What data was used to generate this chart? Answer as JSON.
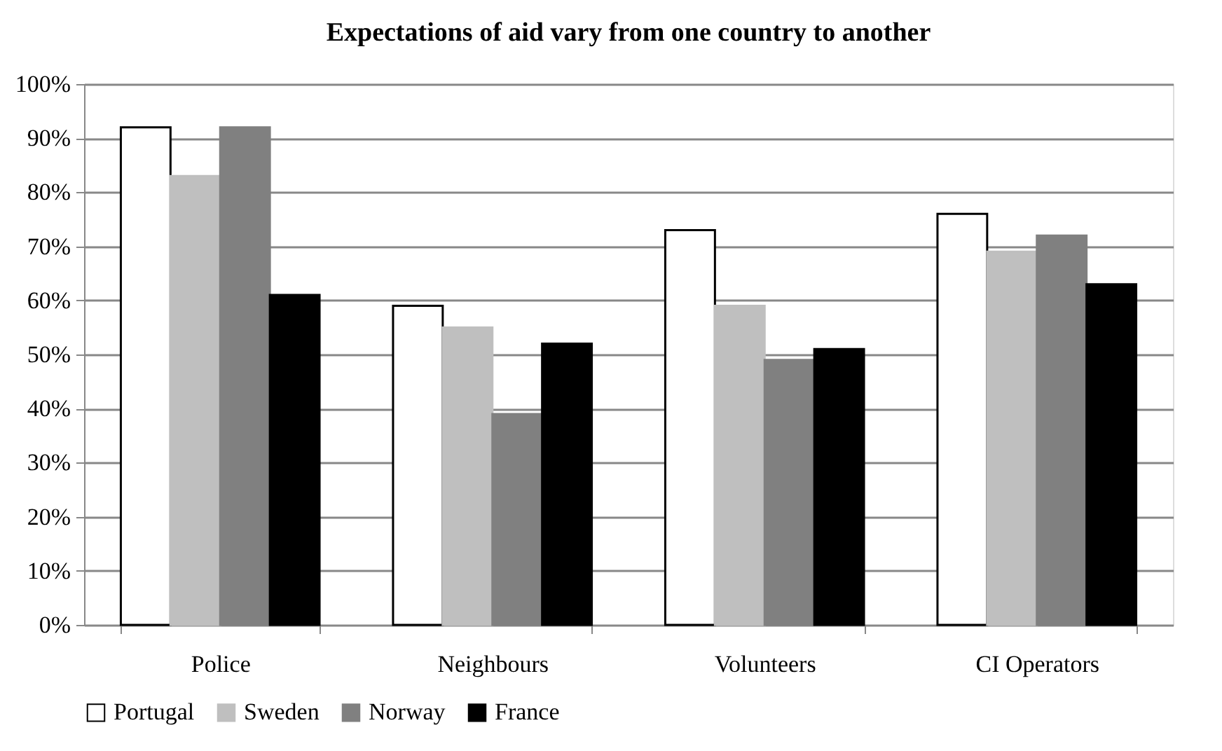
{
  "chart_data": {
    "type": "bar",
    "title": "Expectations of aid vary from one country to another",
    "categories": [
      "Police",
      "Neighbours",
      "Volunteers",
      "CI Operators"
    ],
    "series": [
      {
        "name": "Portugal",
        "color": "#ffffff",
        "values": [
          92,
          59,
          73,
          76
        ]
      },
      {
        "name": "Sweden",
        "color": "#bfbfbf",
        "values": [
          83,
          55,
          59,
          69
        ]
      },
      {
        "name": "Norway",
        "color": "#808080",
        "values": [
          92,
          39,
          49,
          72
        ]
      },
      {
        "name": "France",
        "color": "#000000",
        "values": [
          61,
          52,
          51,
          63
        ]
      }
    ],
    "ylim": [
      0,
      100
    ],
    "yticks": [
      {
        "value": 0,
        "label": "0%"
      },
      {
        "value": 10,
        "label": "10%"
      },
      {
        "value": 20,
        "label": "20%"
      },
      {
        "value": 30,
        "label": "30%"
      },
      {
        "value": 40,
        "label": "40%"
      },
      {
        "value": 50,
        "label": "50%"
      },
      {
        "value": 60,
        "label": "60%"
      },
      {
        "value": 70,
        "label": "70%"
      },
      {
        "value": 80,
        "label": "80%"
      },
      {
        "value": 90,
        "label": "90%"
      },
      {
        "value": 100,
        "label": "100%"
      }
    ],
    "grid": "y",
    "legend": "bottom"
  }
}
